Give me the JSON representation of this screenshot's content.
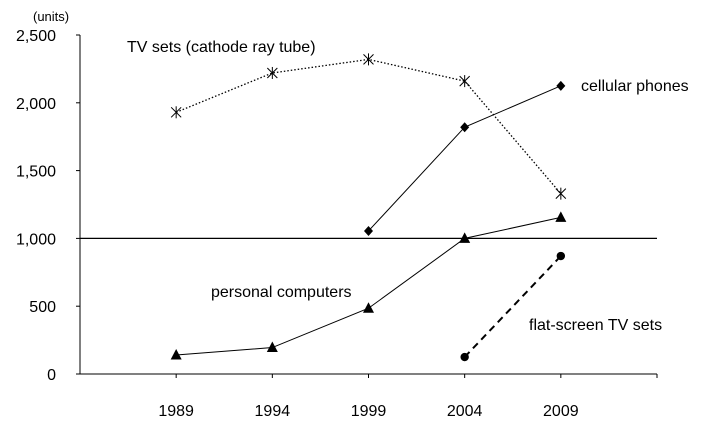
{
  "chart_data": {
    "type": "line",
    "title": "",
    "xlabel": "",
    "ylabel": "(units)",
    "ylim": [
      0,
      2500
    ],
    "yticks": [
      "0",
      "500",
      "1,000",
      "1,500",
      "2,000",
      "2,500"
    ],
    "ytick_values": [
      0,
      500,
      1000,
      1500,
      2000,
      2500
    ],
    "categories": [
      "1989",
      "1994",
      "1999",
      "2004",
      "2009"
    ],
    "reference_line": 1000,
    "grid": false,
    "legend": "inline labels",
    "series": [
      {
        "name": "TV sets (cathode ray tube)",
        "marker": "asterisk",
        "style": "dotted",
        "values": [
          1930,
          2220,
          2320,
          2160,
          1330
        ]
      },
      {
        "name": "cellular phones",
        "marker": "diamond",
        "style": "solid",
        "values": [
          null,
          null,
          1055,
          1820,
          2125
        ]
      },
      {
        "name": "personal computers",
        "marker": "triangle",
        "style": "solid",
        "values": [
          140,
          195,
          485,
          1000,
          1155
        ]
      },
      {
        "name": "flat-screen TV sets",
        "marker": "circle",
        "style": "dashed",
        "values": [
          null,
          null,
          null,
          125,
          870
        ]
      }
    ]
  }
}
